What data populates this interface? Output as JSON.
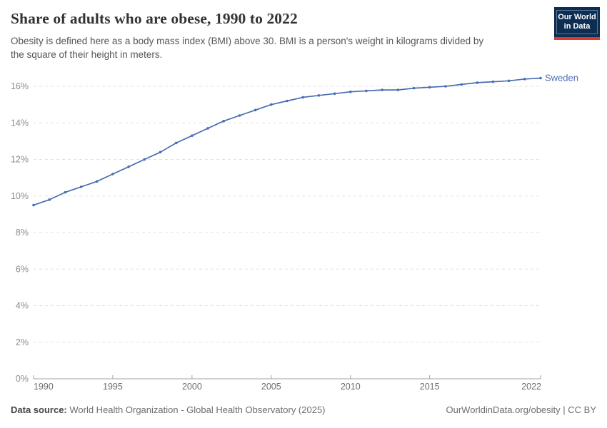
{
  "header": {
    "title": "Share of adults who are obese, 1990 to 2022",
    "subtitle": "Obesity is defined here as a body mass index (BMI) above 30. BMI is a person's weight in kilograms divided by\nthe square of their height in meters.",
    "logo": {
      "line1": "Our World",
      "line2": "in Data",
      "bg_color": "#0d2e52",
      "stripe_color": "#dc3b2b"
    }
  },
  "chart_data": {
    "type": "line",
    "title": "Share of adults who are obese, 1990 to 2022",
    "xlabel": "",
    "ylabel": "",
    "grid": "horizontal-dashed",
    "legend_position": "end-of-line",
    "xlim": [
      1990,
      2022
    ],
    "ylim": [
      0,
      16.8
    ],
    "x_tick_values": [
      1990,
      1995,
      2000,
      2005,
      2010,
      2015,
      2022
    ],
    "x_tick_labels": [
      "1990",
      "1995",
      "2000",
      "2005",
      "2010",
      "2015",
      "2022"
    ],
    "y_tick_values": [
      0,
      2,
      4,
      6,
      8,
      10,
      12,
      14,
      16
    ],
    "y_tick_labels": [
      "0%",
      "2%",
      "4%",
      "6%",
      "8%",
      "10%",
      "12%",
      "14%",
      "16%"
    ],
    "series": [
      {
        "name": "Sweden",
        "color": "#4a6db3",
        "x": [
          1990,
          1991,
          1992,
          1993,
          1994,
          1995,
          1996,
          1997,
          1998,
          1999,
          2000,
          2001,
          2002,
          2003,
          2004,
          2005,
          2006,
          2007,
          2008,
          2009,
          2010,
          2011,
          2012,
          2013,
          2014,
          2015,
          2016,
          2017,
          2018,
          2019,
          2020,
          2021,
          2022
        ],
        "values": [
          9.5,
          9.8,
          10.2,
          10.5,
          10.8,
          11.2,
          11.6,
          12.0,
          12.4,
          12.9,
          13.3,
          13.7,
          14.1,
          14.4,
          14.7,
          15.0,
          15.2,
          15.4,
          15.5,
          15.6,
          15.7,
          15.75,
          15.8,
          15.8,
          15.9,
          15.95,
          16.0,
          16.1,
          16.2,
          16.25,
          16.3,
          16.4,
          16.45
        ]
      }
    ],
    "colors": {
      "gridline": "#e0e0e0",
      "axis": "#a1a1a1",
      "y_tick_label": "#8c8c8c",
      "x_tick_label": "#6d6d6d"
    }
  },
  "footer": {
    "source_label": "Data source:",
    "source_text": " World Health Organization - Global Health Observatory (2025)",
    "credit": "OurWorldinData.org/obesity | CC BY"
  }
}
